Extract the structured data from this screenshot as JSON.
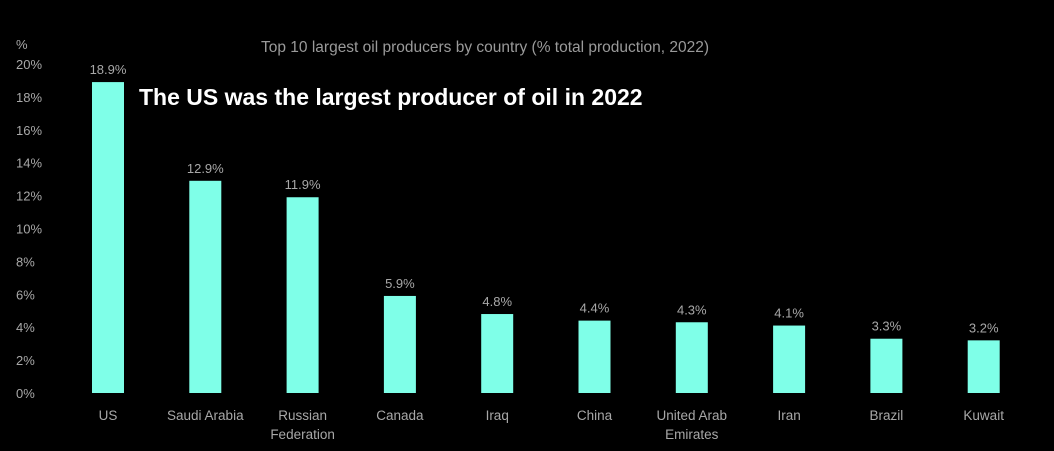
{
  "headline": "The US was the largest producer of oil in 2022",
  "colors": {
    "background": "#000000",
    "bar": "#7fffe8",
    "axis_text": "#a8a8a8",
    "title_text": "#9a9a9a",
    "headline_text": "#ffffff"
  },
  "chart_data": {
    "type": "bar",
    "title": "Top 10 largest oil producers by country (% total production, 2022)",
    "ylabel": "%",
    "xlabel": "",
    "ylim": [
      0,
      20
    ],
    "yticks": [
      0,
      2,
      4,
      6,
      8,
      10,
      12,
      14,
      16,
      18,
      20
    ],
    "ytick_labels": [
      "0%",
      "2%",
      "4%",
      "6%",
      "8%",
      "10%",
      "12%",
      "14%",
      "16%",
      "18%",
      "20%"
    ],
    "grid": false,
    "categories": [
      [
        "US"
      ],
      [
        "Saudi Arabia"
      ],
      [
        "Russian",
        "Federation"
      ],
      [
        "Canada"
      ],
      [
        "Iraq"
      ],
      [
        "China"
      ],
      [
        "United Arab",
        "Emirates"
      ],
      [
        "Iran"
      ],
      [
        "Brazil"
      ],
      [
        "Kuwait"
      ]
    ],
    "values": [
      18.9,
      12.9,
      11.9,
      5.9,
      4.8,
      4.4,
      4.3,
      4.1,
      3.3,
      3.2
    ],
    "data_labels": [
      "18.9%",
      "12.9%",
      "11.9%",
      "5.9%",
      "4.8%",
      "4.4%",
      "4.3%",
      "4.1%",
      "3.3%",
      "3.2%"
    ]
  }
}
